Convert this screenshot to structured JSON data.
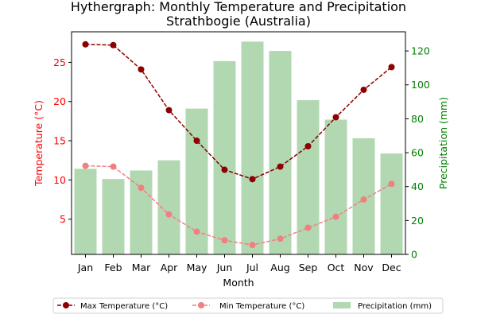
{
  "colors": {
    "max_temp": "#8b0000",
    "min_temp": "#f08080",
    "precip": "#b2d8b2",
    "left_axis": "#ff0000",
    "right_axis": "#008000"
  },
  "chart_data": {
    "type": "bar+line",
    "title": "Hythergraph: Monthly Temperature and Precipitation",
    "subtitle": "Strathbogie (Australia)",
    "xlabel": "Month",
    "ylabel_left": "Temperature (°C)",
    "ylabel_right": "Precipitation (mm)",
    "categories": [
      "Jan",
      "Feb",
      "Mar",
      "Apr",
      "May",
      "Jun",
      "Jul",
      "Aug",
      "Sep",
      "Oct",
      "Nov",
      "Dec"
    ],
    "ylim_left": [
      0.5,
      28.9
    ],
    "ylim_right": [
      0,
      131.3
    ],
    "yticks_left": [
      5,
      10,
      15,
      20,
      25
    ],
    "yticks_right": [
      0,
      20,
      40,
      60,
      80,
      100,
      120
    ],
    "series": [
      {
        "name": "Max Temperature (°C)",
        "type": "line",
        "axis": "left",
        "values": [
          27.3,
          27.2,
          24.1,
          18.9,
          15.0,
          11.3,
          10.1,
          11.7,
          14.3,
          18.0,
          21.5,
          24.4
        ]
      },
      {
        "name": "Min Temperature (°C)",
        "type": "line",
        "axis": "left",
        "values": [
          11.8,
          11.7,
          9.0,
          5.6,
          3.4,
          2.3,
          1.7,
          2.5,
          3.9,
          5.3,
          7.5,
          9.5
        ]
      },
      {
        "name": "Precipitation (mm)",
        "type": "bar",
        "axis": "right",
        "values": [
          50.5,
          44.5,
          49.5,
          55.5,
          86.0,
          114.0,
          125.5,
          120.0,
          91.0,
          79.5,
          68.5,
          59.5
        ]
      }
    ],
    "legend": {
      "position": "bottom-center",
      "columns": 3
    }
  }
}
